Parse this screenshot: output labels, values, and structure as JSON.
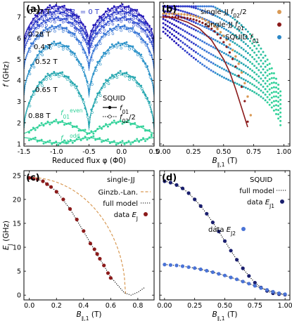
{
  "chart_data": [
    {
      "panel": "(a)",
      "type": "scatter",
      "xlabel": "Reduced flux φ (Φ0)",
      "ylabel": "f (GHz)",
      "xlim": [
        -1.5,
        0.5
      ],
      "ylim": [
        0.9,
        7.7
      ],
      "xticks": [
        "-1.5",
        "-1.0",
        "-0.5",
        "0.0",
        "0.5"
      ],
      "yticks": [
        "1",
        "2",
        "3",
        "4",
        "5",
        "6",
        "7"
      ],
      "field_labels": [
        {
          "text": "0.17 T",
          "color": "#2f3cc8"
        },
        {
          "text": "B∥ = 0 T",
          "color": "#2f3cc8"
        },
        {
          "text": "0.28 T",
          "color": "#3a55d2"
        },
        {
          "text": "0.4 T",
          "color": "#3b78d6"
        },
        {
          "text": "0.52 T",
          "color": "#2e93c9"
        },
        {
          "text": "0.65 T",
          "color": "#27a7b0"
        },
        {
          "text": "0.88 T",
          "color": "#33d29a"
        },
        {
          "text": "f01^even",
          "color": "#33d29a"
        },
        {
          "text": "f01^odd",
          "color": "#33d29a"
        }
      ],
      "legend_title": "SQUID",
      "legend": [
        "f01",
        "f02/2"
      ],
      "series": [
        {
          "name": "0 T",
          "color": "#2419b8",
          "max": 7.5,
          "min": 5.8
        },
        {
          "name": "0.17 T",
          "color": "#2f3cc8",
          "max": 7.25,
          "min": 5.55
        },
        {
          "name": "0.28 T",
          "color": "#3a55d2",
          "max": 6.95,
          "min": 5.25
        },
        {
          "name": "0.4 T",
          "color": "#3b78d6",
          "max": 6.55,
          "min": 4.55
        },
        {
          "name": "0.52 T",
          "color": "#2e93c9",
          "max": 5.75,
          "min": 3.3
        },
        {
          "name": "0.65 T",
          "color": "#27a7b0",
          "max": 4.35,
          "min": 1.75
        },
        {
          "name": "0.88 T even",
          "color": "#33d29a",
          "max": 2.05,
          "min": 1.5
        },
        {
          "name": "0.88 T odd",
          "color": "#33d29a",
          "max": 1.3,
          "min": 1.05
        }
      ]
    },
    {
      "panel": "(b)",
      "type": "scatter",
      "xlabel": "B∥,1 (T)",
      "ylabel": "",
      "xlim": [
        -0.03,
        1.05
      ],
      "ylim": [
        0.9,
        7.7
      ],
      "xticks": [
        "0.00",
        "0.25",
        "0.50",
        "0.75",
        "1.00"
      ],
      "legend": [
        {
          "label": "single-JJ f02/2",
          "color": "#d99a55"
        },
        {
          "label": "single-JJ f01",
          "color": "#8b1a1a"
        },
        {
          "label": "SQUID f01",
          "color": "#2b87c6"
        }
      ],
      "single_jj_f01": [
        [
          0.0,
          7.0
        ],
        [
          0.1,
          6.95
        ],
        [
          0.2,
          6.75
        ],
        [
          0.3,
          6.45
        ],
        [
          0.4,
          5.9
        ],
        [
          0.5,
          5.0
        ],
        [
          0.55,
          4.4
        ],
        [
          0.6,
          3.6
        ],
        [
          0.65,
          2.7
        ],
        [
          0.7,
          1.8
        ]
      ]
    },
    {
      "panel": "(c)",
      "type": "scatter",
      "xlabel": "B∥,1 (T)",
      "ylabel": "Ej (GHz)",
      "xlim": [
        -0.04,
        0.92
      ],
      "ylim": [
        -1,
        26
      ],
      "xticks": [
        "0.0",
        "0.2",
        "0.4",
        "0.6",
        "0.8"
      ],
      "yticks": [
        "0",
        "5",
        "10",
        "15",
        "20",
        "25"
      ],
      "legend_title": "single-JJ",
      "legend": [
        {
          "label": "Ginzb.-Lan.",
          "color": "#d99a55"
        },
        {
          "label": "full model",
          "color": "#000000"
        },
        {
          "label": "data Ej",
          "color": "#8b1a1a"
        }
      ],
      "data_Ej": [
        [
          0.0,
          24.5
        ],
        [
          0.03,
          24.3
        ],
        [
          0.06,
          24.2
        ],
        [
          0.1,
          23.8
        ],
        [
          0.13,
          23.2
        ],
        [
          0.16,
          22.6
        ],
        [
          0.2,
          21.6
        ],
        [
          0.25,
          20.0
        ],
        [
          0.3,
          18.0
        ],
        [
          0.35,
          15.8
        ],
        [
          0.4,
          13.4
        ],
        [
          0.45,
          10.8
        ],
        [
          0.48,
          9.6
        ],
        [
          0.5,
          8.6
        ],
        [
          0.52,
          7.6
        ],
        [
          0.55,
          6.2
        ],
        [
          0.58,
          4.6
        ],
        [
          0.6,
          3.6
        ]
      ],
      "full_model": [
        [
          0.0,
          24.6
        ],
        [
          0.1,
          23.9
        ],
        [
          0.2,
          21.7
        ],
        [
          0.3,
          18.0
        ],
        [
          0.4,
          13.3
        ],
        [
          0.5,
          8.5
        ],
        [
          0.6,
          3.8
        ],
        [
          0.7,
          0.5
        ],
        [
          0.75,
          0.0
        ],
        [
          0.8,
          0.6
        ],
        [
          0.85,
          1.6
        ]
      ],
      "ginzburg_landau": {
        "E0": 24.6,
        "Bc": 0.71
      }
    },
    {
      "panel": "(d)",
      "type": "scatter",
      "xlabel": "B∥,1 (T)",
      "ylabel": "",
      "xlim": [
        -0.04,
        1.04
      ],
      "ylim": [
        -1,
        26
      ],
      "xticks": [
        "0.00",
        "0.25",
        "0.50",
        "0.75",
        "1.00"
      ],
      "legend_title": "SQUID",
      "legend": [
        {
          "label": "full model",
          "color": "#000000"
        },
        {
          "label": "data Ej1",
          "color": "#1a1f6e"
        },
        {
          "label": "data Ej2",
          "color": "#4a73d6"
        }
      ],
      "data_Ej1": [
        [
          0.0,
          23.8
        ],
        [
          0.05,
          23.5
        ],
        [
          0.1,
          23.0
        ],
        [
          0.15,
          22.3
        ],
        [
          0.2,
          21.3
        ],
        [
          0.25,
          20.0
        ],
        [
          0.3,
          18.6
        ],
        [
          0.35,
          17.0
        ],
        [
          0.4,
          15.2
        ],
        [
          0.45,
          13.3
        ],
        [
          0.5,
          11.3
        ],
        [
          0.55,
          9.3
        ],
        [
          0.6,
          7.4
        ],
        [
          0.65,
          5.6
        ],
        [
          0.7,
          4.0
        ],
        [
          0.75,
          2.6
        ],
        [
          0.8,
          1.6
        ],
        [
          0.85,
          0.9
        ],
        [
          0.9,
          0.4
        ],
        [
          0.95,
          0.2
        ],
        [
          1.0,
          0.1
        ]
      ],
      "data_Ej2": [
        [
          0.0,
          6.4
        ],
        [
          0.05,
          6.3
        ],
        [
          0.1,
          6.2
        ],
        [
          0.15,
          6.05
        ],
        [
          0.2,
          5.85
        ],
        [
          0.25,
          5.65
        ],
        [
          0.3,
          5.4
        ],
        [
          0.35,
          5.1
        ],
        [
          0.4,
          4.8
        ],
        [
          0.45,
          4.45
        ],
        [
          0.5,
          4.1
        ],
        [
          0.55,
          3.7
        ],
        [
          0.6,
          3.3
        ],
        [
          0.65,
          2.85
        ],
        [
          0.7,
          2.4
        ],
        [
          0.75,
          1.95
        ],
        [
          0.8,
          1.5
        ],
        [
          0.85,
          1.1
        ],
        [
          0.9,
          0.7
        ],
        [
          0.95,
          0.4
        ],
        [
          1.0,
          0.2
        ]
      ]
    }
  ]
}
